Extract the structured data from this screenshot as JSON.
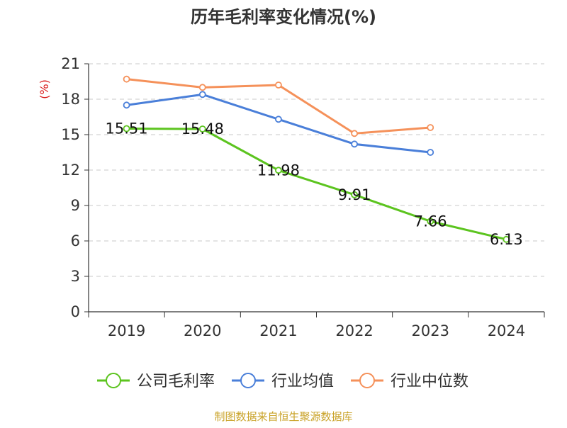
{
  "chart_data": {
    "type": "line",
    "title": "历年毛利率变化情况(%)",
    "ylabel": "(%)",
    "xlabel": "",
    "categories": [
      "2019",
      "2020",
      "2021",
      "2022",
      "2023",
      "2024"
    ],
    "ylim": [
      0,
      21
    ],
    "yticks": [
      0,
      3,
      6,
      9,
      12,
      15,
      18,
      21
    ],
    "ytick_labels": [
      "0",
      "3",
      "6",
      "9",
      "12",
      "15",
      "18",
      "21"
    ],
    "grid": true,
    "legend_position": "bottom",
    "series": [
      {
        "name": "公司毛利率",
        "color": "#5cc41f",
        "values": [
          15.51,
          15.48,
          11.98,
          9.91,
          7.66,
          6.13
        ],
        "labels": [
          "15.51",
          "15.48",
          "11.98",
          "9.91",
          "7.66",
          "6.13"
        ]
      },
      {
        "name": "行业均值",
        "color": "#4a7fd9",
        "values": [
          17.5,
          18.4,
          16.3,
          14.2,
          13.5,
          null
        ]
      },
      {
        "name": "行业中位数",
        "color": "#f5915a",
        "values": [
          19.7,
          19.0,
          19.2,
          15.1,
          15.6,
          null
        ]
      }
    ]
  },
  "source": "制图数据来自恒生聚源数据库"
}
